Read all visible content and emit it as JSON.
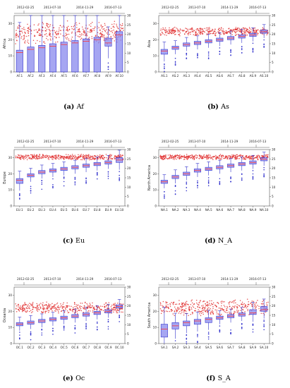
{
  "chart_data": [
    {
      "type": "box",
      "region": "Af",
      "caption_letter": "(a)",
      "caption_text": "Af",
      "ylabel": "Africa",
      "top_dates": [
        "2012-02-25",
        "2013-07-10",
        "2014-11-29",
        "2016-07-13"
      ],
      "ylim_left": [
        0,
        35
      ],
      "yticks_left": [
        0,
        10,
        20,
        30
      ],
      "ylim_right": [
        0,
        30
      ],
      "yticks_right": [
        0,
        5,
        10,
        15,
        20,
        25,
        30
      ],
      "categories": [
        "AF.1",
        "AF.2",
        "AF.3",
        "AF.4",
        "AF.5",
        "AF.6",
        "AF.7",
        "AF.8",
        "AF.9",
        "AF.10"
      ],
      "boxes": [
        {
          "q1": 0,
          "median": 12,
          "q3": 13.5
        },
        {
          "q1": 0,
          "median": 14,
          "q3": 15.5
        },
        {
          "q1": 0,
          "median": 15,
          "q3": 16.5
        },
        {
          "q1": 0,
          "median": 16,
          "q3": 17.5
        },
        {
          "q1": 0,
          "median": 17,
          "q3": 18.5
        },
        {
          "q1": 0,
          "median": 18,
          "q3": 19.5
        },
        {
          "q1": 0,
          "median": 19,
          "q3": 20.5
        },
        {
          "q1": 0,
          "median": 20,
          "q3": 21.5
        },
        {
          "q1": 16,
          "median": 18,
          "q3": 21
        },
        {
          "q1": 0,
          "median": 23,
          "q3": 25
        }
      ],
      "scatter_band_right": [
        17,
        25
      ],
      "colors": {
        "box": "#8888ee",
        "scatter": "#e03030"
      }
    },
    {
      "type": "box",
      "region": "As",
      "caption_letter": "(b)",
      "caption_text": "As",
      "ylabel": "Asia",
      "top_dates": [
        "2012-02-25",
        "2013-07-10",
        "2014-11-29",
        "2016-07-13"
      ],
      "ylim_left": [
        0,
        35
      ],
      "yticks_left": [
        0,
        10,
        20,
        30
      ],
      "ylim_right": [
        0,
        30
      ],
      "yticks_right": [
        0,
        5,
        10,
        15,
        20,
        25,
        30
      ],
      "categories": [
        "AS.1",
        "AS.2",
        "AS.3",
        "AS.4",
        "AS.5",
        "AS.6",
        "AS.7",
        "AS.8",
        "AS.9",
        "AS.10"
      ],
      "boxes": [
        {
          "q1": 11,
          "median": 13,
          "q3": 14
        },
        {
          "q1": 14,
          "median": 15,
          "q3": 16
        },
        {
          "q1": 16,
          "median": 17,
          "q3": 18
        },
        {
          "q1": 17,
          "median": 18,
          "q3": 19
        },
        {
          "q1": 18,
          "median": 19,
          "q3": 20
        },
        {
          "q1": 19,
          "median": 20,
          "q3": 21
        },
        {
          "q1": 20,
          "median": 21,
          "q3": 22
        },
        {
          "q1": 21,
          "median": 22,
          "q3": 23
        },
        {
          "q1": 22,
          "median": 23,
          "q3": 24
        },
        {
          "q1": 24,
          "median": 25,
          "q3": 26
        }
      ],
      "scatter_band_right": [
        20,
        23
      ],
      "colors": {
        "box": "#8888ee",
        "scatter": "#e03030"
      }
    },
    {
      "type": "box",
      "region": "Eu",
      "caption_letter": "(c)",
      "caption_text": "Eu",
      "ylabel": "Europe",
      "top_dates": [
        "2012-02-25",
        "2013-07-10",
        "2014-11-29",
        "2016-07-13"
      ],
      "ylim_left": [
        0,
        35
      ],
      "yticks_left": [
        0,
        10,
        20,
        30
      ],
      "ylim_right": [
        0,
        30
      ],
      "yticks_right": [
        0,
        5,
        10,
        15,
        20,
        25,
        30
      ],
      "categories": [
        "EU.1",
        "EU.2",
        "EU.3",
        "EU.4",
        "EU.5",
        "EU.6",
        "EU.7",
        "EU.8",
        "EU.9",
        "EU.10"
      ],
      "boxes": [
        {
          "q1": 14,
          "median": 16,
          "q3": 17
        },
        {
          "q1": 18,
          "median": 19,
          "q3": 20
        },
        {
          "q1": 20,
          "median": 21,
          "q3": 22
        },
        {
          "q1": 21,
          "median": 22,
          "q3": 23
        },
        {
          "q1": 22,
          "median": 23,
          "q3": 24
        },
        {
          "q1": 23,
          "median": 24,
          "q3": 25
        },
        {
          "q1": 24,
          "median": 25,
          "q3": 26
        },
        {
          "q1": 25,
          "median": 26,
          "q3": 27
        },
        {
          "q1": 26,
          "median": 27,
          "q3": 28
        },
        {
          "q1": 27,
          "median": 28.5,
          "q3": 30
        }
      ],
      "scatter_band_right": [
        25,
        27
      ],
      "colors": {
        "box": "#8888ee",
        "scatter": "#e03030"
      }
    },
    {
      "type": "box",
      "region": "N_A",
      "caption_letter": "(d)",
      "caption_text": "N_A",
      "ylabel": "North America",
      "top_dates": [
        "2012-02-25",
        "2013-07-10",
        "2014-11-29",
        "2016-07-13"
      ],
      "ylim_left": [
        0,
        35
      ],
      "yticks_left": [
        0,
        10,
        20,
        30
      ],
      "ylim_right": [
        0,
        30
      ],
      "yticks_right": [
        0,
        5,
        10,
        15,
        20,
        25,
        30
      ],
      "categories": [
        "NA.1",
        "NA.2",
        "NA.3",
        "NA.4",
        "NA.5",
        "NA.6",
        "NA.7",
        "NA.8",
        "NA.9",
        "NA.10"
      ],
      "boxes": [
        {
          "q1": 14,
          "median": 15,
          "q3": 16
        },
        {
          "q1": 17,
          "median": 18,
          "q3": 19
        },
        {
          "q1": 19,
          "median": 20,
          "q3": 21
        },
        {
          "q1": 21,
          "median": 22,
          "q3": 23
        },
        {
          "q1": 22,
          "median": 23,
          "q3": 24
        },
        {
          "q1": 23,
          "median": 24,
          "q3": 25
        },
        {
          "q1": 24,
          "median": 25,
          "q3": 26
        },
        {
          "q1": 25,
          "median": 26,
          "q3": 27
        },
        {
          "q1": 26,
          "median": 27,
          "q3": 28
        },
        {
          "q1": 28,
          "median": 29,
          "q3": 30
        }
      ],
      "scatter_band_right": [
        25,
        27
      ],
      "colors": {
        "box": "#8888ee",
        "scatter": "#e03030"
      }
    },
    {
      "type": "box",
      "region": "Oc",
      "caption_letter": "(e)",
      "caption_text": "Oc",
      "ylabel": "Oceania",
      "top_dates": [
        "2012-02-25",
        "2013-07-10",
        "2014-11-29",
        "2016-07-13"
      ],
      "ylim_left": [
        0,
        35
      ],
      "yticks_left": [
        0,
        10,
        20,
        30
      ],
      "ylim_right": [
        0,
        30
      ],
      "yticks_right": [
        0,
        5,
        10,
        15,
        20,
        25,
        30
      ],
      "categories": [
        "OC.1",
        "OC.2",
        "OC.3",
        "OC.4",
        "OC.5",
        "OC.6",
        "OC.7",
        "OC.8",
        "OC.9",
        "OC.10"
      ],
      "boxes": [
        {
          "q1": 11,
          "median": 12,
          "q3": 13
        },
        {
          "q1": 12,
          "median": 13,
          "q3": 14
        },
        {
          "q1": 13,
          "median": 14,
          "q3": 15
        },
        {
          "q1": 14,
          "median": 15,
          "q3": 16
        },
        {
          "q1": 15,
          "median": 16,
          "q3": 17
        },
        {
          "q1": 16,
          "median": 17,
          "q3": 18
        },
        {
          "q1": 17,
          "median": 18,
          "q3": 19
        },
        {
          "q1": 18,
          "median": 19,
          "q3": 20
        },
        {
          "q1": 19,
          "median": 20,
          "q3": 21
        },
        {
          "q1": 22,
          "median": 23,
          "q3": 24
        }
      ],
      "scatter_band_right": [
        17,
        21
      ],
      "colors": {
        "box": "#8888ee",
        "scatter": "#e03030"
      }
    },
    {
      "type": "box",
      "region": "S_A",
      "caption_letter": "(f)",
      "caption_text": "S_A",
      "ylabel": "South America",
      "top_dates": [
        "2012-02-25",
        "2013-07-10",
        "2014-11-29",
        "2016-07-13"
      ],
      "ylim_left": [
        0,
        35
      ],
      "yticks_left": [
        0,
        10,
        20,
        30
      ],
      "ylim_right": [
        0,
        30
      ],
      "yticks_right": [
        0,
        5,
        10,
        15,
        20,
        25,
        30
      ],
      "categories": [
        "SA.1",
        "SA.2",
        "SA.3",
        "SA.4",
        "SA.5",
        "SA.6",
        "SA.7",
        "SA.8",
        "SA.9",
        "SA.10"
      ],
      "boxes": [
        {
          "q1": 4,
          "median": 9,
          "q3": 12
        },
        {
          "q1": 9,
          "median": 11,
          "q3": 13
        },
        {
          "q1": 11,
          "median": 13,
          "q3": 14
        },
        {
          "q1": 12,
          "median": 14,
          "q3": 15
        },
        {
          "q1": 13,
          "median": 15,
          "q3": 16
        },
        {
          "q1": 15,
          "median": 16,
          "q3": 17
        },
        {
          "q1": 16,
          "median": 17,
          "q3": 18
        },
        {
          "q1": 17,
          "median": 18,
          "q3": 19
        },
        {
          "q1": 18,
          "median": 19,
          "q3": 21
        },
        {
          "q1": 20,
          "median": 21,
          "q3": 23
        }
      ],
      "scatter_band_right": [
        16,
        22
      ],
      "colors": {
        "box": "#8888ee",
        "scatter": "#e03030"
      }
    }
  ]
}
